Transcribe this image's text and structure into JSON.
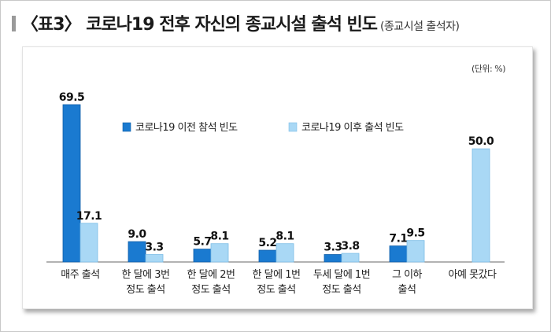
{
  "title": {
    "main": "〈표3〉 코로나19 전후 자신의 종교시설 출석 빈도",
    "sub": "(종교시설 출석자)"
  },
  "chart_data": {
    "type": "bar",
    "unit": "(단위: %)",
    "categories": [
      [
        "매주 출석"
      ],
      [
        "한 달에 3번",
        "정도 출석"
      ],
      [
        "한 달에 2번",
        "정도 출석"
      ],
      [
        "한 달에 1번",
        "정도 출석"
      ],
      [
        "두세 달에 1번",
        "정도 출석"
      ],
      [
        "그 이하",
        "출석"
      ],
      [
        "아예 못갔다"
      ]
    ],
    "series": [
      {
        "name": "코로나19 이전 참석 빈도",
        "color": "#1a7ad0",
        "values": [
          69.5,
          9.0,
          5.7,
          5.2,
          3.3,
          7.1,
          null
        ]
      },
      {
        "name": "코로나19 이후 출석 빈도",
        "color": "#a9d8f5",
        "values": [
          17.1,
          3.3,
          8.1,
          8.1,
          3.8,
          9.5,
          50.0
        ]
      }
    ],
    "ylim": [
      0,
      69.5
    ],
    "legend_position": "top-center"
  }
}
